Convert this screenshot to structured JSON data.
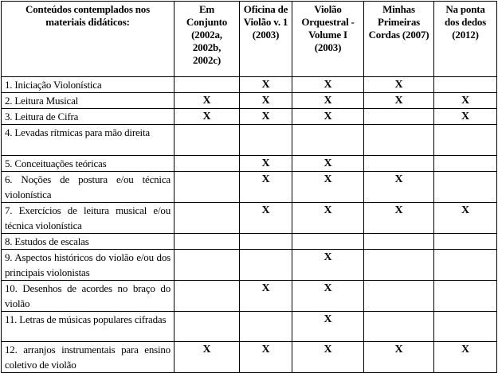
{
  "headers": [
    "Conteúdos contemplados nos materiais didáticos:",
    "Em Conjunto (2002a, 2002b, 2002c)",
    "Oficina de Violão v. 1 (2003)",
    "Violão Orquestral - Volume I (2003)",
    "Minhas Primeiras Cordas (2007)",
    "Na ponta dos dedos (2012)"
  ],
  "rows": [
    {
      "label": "1. Iniciação Violonística",
      "marks": [
        "",
        "X",
        "X",
        "X",
        ""
      ]
    },
    {
      "label": "2. Leitura Musical",
      "marks": [
        "X",
        "X",
        "X",
        "X",
        "X"
      ]
    },
    {
      "label": "3. Leitura de Cifra",
      "marks": [
        "X",
        "X",
        "X",
        "",
        "X"
      ]
    },
    {
      "label": "4. Levadas rítmicas para mão direita",
      "marks": [
        "",
        "",
        "",
        "",
        ""
      ]
    },
    {
      "label": "5. Conceituações teóricas",
      "marks": [
        "",
        "X",
        "X",
        "",
        ""
      ]
    },
    {
      "label": "6. Noções de postura e/ou técnica violonística",
      "marks": [
        "",
        "X",
        "X",
        "X",
        ""
      ]
    },
    {
      "label": "7. Exercícios de leitura musical e/ou técnica violonística",
      "marks": [
        "",
        "X",
        "X",
        "X",
        "X"
      ]
    },
    {
      "label": "8. Estudos de escalas",
      "marks": [
        "",
        "",
        "",
        "",
        ""
      ]
    },
    {
      "label": "9. Aspectos históricos do violão e/ou dos principais violonistas",
      "marks": [
        "",
        "",
        "X",
        "",
        ""
      ]
    },
    {
      "label": "10. Desenhos de acordes no braço do violão",
      "marks": [
        "",
        "X",
        "X",
        "",
        ""
      ]
    },
    {
      "label": "11. Letras de músicas populares cifradas",
      "marks": [
        "",
        "",
        "X",
        "",
        ""
      ]
    },
    {
      "label": "12. arranjos instrumentais para ensino coletivo de violão",
      "marks": [
        "X",
        "X",
        "X",
        "X",
        "X"
      ]
    }
  ]
}
